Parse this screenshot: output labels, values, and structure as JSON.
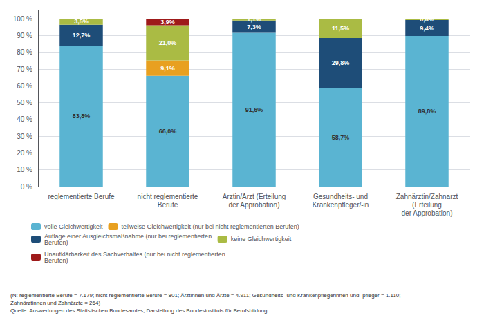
{
  "chart_data": {
    "type": "bar",
    "stacked": true,
    "grid": true,
    "legend": "bottom",
    "data_labels": true,
    "categories": [
      "reglementierte Berufe",
      "nicht reglementierte\nBerufe",
      "Ärztin/Arzt (Erteilung\nder Approbation)",
      "Gesundheits- und\nKrankenpfleger/-in",
      "Zahnärztin/Zahnarzt\n(Erteilung\nder Approbation)"
    ],
    "series": [
      {
        "name": "volle Gleichwertigkeit",
        "color": "#5ab4d2",
        "values": [
          83.8,
          66.0,
          91.6,
          58.7,
          89.8
        ],
        "value_labels": [
          "83,8%",
          "66,0%",
          "91,6%",
          "58,7%",
          "89,8%"
        ]
      },
      {
        "name": "teilweise Gleichwertigkeit (nur bei nicht reglementierten Berufen)",
        "color": "#e8a020",
        "values": [
          0.0,
          9.1,
          0.0,
          0.0,
          0.0
        ],
        "value_labels": [
          null,
          "9,1%",
          null,
          null,
          null
        ]
      },
      {
        "name": "Auflage einer Ausgleichsmaßnahme (nur bei reglementierten\nBerufen)",
        "color": "#1e4d78",
        "values": [
          12.7,
          0.0,
          7.3,
          29.8,
          9.4
        ],
        "value_labels": [
          "12,7%",
          null,
          "7,3%",
          "29,8%",
          "9,4%"
        ]
      },
      {
        "name": "keine Gleichwertigkeit",
        "color": "#aabb44",
        "values": [
          3.5,
          21.0,
          1.1,
          11.5,
          0.8
        ],
        "value_labels": [
          "3,5%",
          "21,0%",
          "1,1%",
          "11,5%",
          "0,8%"
        ]
      },
      {
        "name": "Unaufklärbarkeit des Sachverhaltes (nur bei nicht reglementierten\nBerufen)",
        "color": "#9e1a1a",
        "values": [
          0.0,
          3.9,
          0.0,
          0.0,
          0.0
        ],
        "value_labels": [
          null,
          "3,9%",
          null,
          null,
          null
        ]
      }
    ],
    "ylim": [
      0,
      105
    ],
    "yticks": [
      {
        "value": 0,
        "label": "0 %"
      },
      {
        "value": 10,
        "label": "10 %"
      },
      {
        "value": 20,
        "label": "20 %"
      },
      {
        "value": 30,
        "label": "30 %"
      },
      {
        "value": 40,
        "label": "40 %"
      },
      {
        "value": 50,
        "label": "50 %"
      },
      {
        "value": 60,
        "label": "60 %"
      },
      {
        "value": 70,
        "label": "70 %"
      },
      {
        "value": 80,
        "label": "80 %"
      },
      {
        "value": 90,
        "label": "90 %"
      },
      {
        "value": 100,
        "label": "100 %"
      }
    ],
    "annotations": [
      "(N: reglementierte Berufe = 7.179; nicht reglementierte Berufe = 801; Ärztinnen und Ärzte = 4.911; Gesundheits- und Krankenpflegerinnen und -pfleger = 1.110;",
      "Zahnärztinnen und Zahnärzte = 264)",
      "Quelle: Auswertungen des Statistischen Bundesamtes; Darstellung des Bundesinstituts für Berufsbildung"
    ]
  }
}
